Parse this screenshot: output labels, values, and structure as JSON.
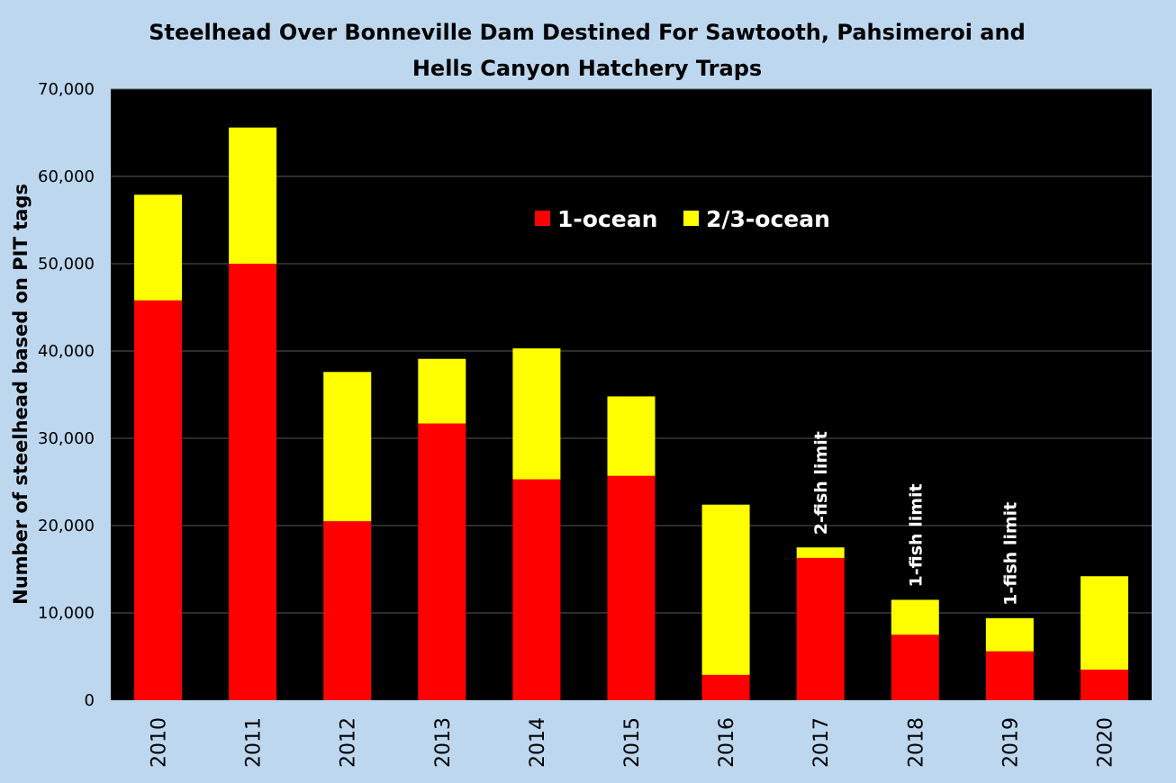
{
  "chart_data": {
    "type": "bar",
    "stacked": true,
    "title_lines": [
      "Steelhead Over Bonneville Dam Destined For Sawtooth, Pahsimeroi and",
      "Hells Canyon Hatchery Traps"
    ],
    "xlabel": "",
    "ylabel": "Number of steelhead based on PIT tags",
    "ylim": [
      0,
      70000
    ],
    "yticks": [
      0,
      10000,
      20000,
      30000,
      40000,
      50000,
      60000,
      70000
    ],
    "ytick_labels": [
      "0",
      "10,000",
      "20,000",
      "30,000",
      "40,000",
      "50,000",
      "60,000",
      "70,000"
    ],
    "categories": [
      "2010",
      "2011",
      "2012",
      "2013",
      "2014",
      "2015",
      "2016",
      "2017",
      "2018",
      "2019",
      "2020"
    ],
    "series": [
      {
        "name": "1-ocean",
        "color": "#ff0000",
        "values": [
          45800,
          50000,
          20500,
          31700,
          25300,
          25700,
          2900,
          16300,
          7500,
          5600,
          3500
        ]
      },
      {
        "name": "2/3-ocean",
        "color": "#ffff00",
        "values": [
          12100,
          15600,
          17100,
          7400,
          15000,
          9100,
          19500,
          1200,
          4000,
          3800,
          10700
        ]
      }
    ],
    "annotations": [
      {
        "category": "2017",
        "text": "2-fish limit"
      },
      {
        "category": "2018",
        "text": "1-fish limit"
      },
      {
        "category": "2019",
        "text": "1-fish limit"
      }
    ],
    "legend_position": "top-center",
    "grid": true,
    "colors": {
      "page_background": "#bdd7ee",
      "plot_background": "#000000",
      "grid": "#595959"
    }
  }
}
